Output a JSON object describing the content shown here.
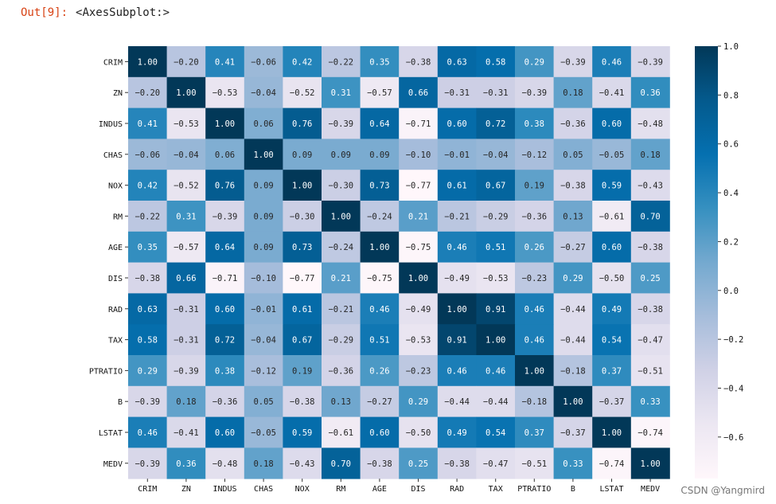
{
  "output": {
    "prompt": "Out[9]:",
    "text": "<AxesSubplot:>"
  },
  "watermark": "CSDN @Yangmird",
  "colors": {
    "prompt": "#d84315",
    "colormap": [
      "#fff7fb",
      "#ece7f2",
      "#d0d1e6",
      "#a6bddb",
      "#74a9cf",
      "#3690c0",
      "#0570b0",
      "#045a8d",
      "#023858"
    ]
  },
  "chart_data": {
    "type": "heatmap",
    "title": "",
    "xlabel": "",
    "ylabel": "",
    "labels": [
      "CRIM",
      "ZN",
      "INDUS",
      "CHAS",
      "NOX",
      "RM",
      "AGE",
      "DIS",
      "RAD",
      "TAX",
      "PTRATIO",
      "B",
      "LSTAT",
      "MEDV"
    ],
    "values": [
      [
        1.0,
        -0.2,
        0.41,
        -0.06,
        0.42,
        -0.22,
        0.35,
        -0.38,
        0.63,
        0.58,
        0.29,
        -0.39,
        0.46,
        -0.39
      ],
      [
        -0.2,
        1.0,
        -0.53,
        -0.04,
        -0.52,
        0.31,
        -0.57,
        0.66,
        -0.31,
        -0.31,
        -0.39,
        0.18,
        -0.41,
        0.36
      ],
      [
        0.41,
        -0.53,
        1.0,
        0.06,
        0.76,
        -0.39,
        0.64,
        -0.71,
        0.6,
        0.72,
        0.38,
        -0.36,
        0.6,
        -0.48
      ],
      [
        -0.06,
        -0.04,
        0.06,
        1.0,
        0.09,
        0.09,
        0.09,
        -0.1,
        -0.01,
        -0.04,
        -0.12,
        0.05,
        -0.05,
        0.18
      ],
      [
        0.42,
        -0.52,
        0.76,
        0.09,
        1.0,
        -0.3,
        0.73,
        -0.77,
        0.61,
        0.67,
        0.19,
        -0.38,
        0.59,
        -0.43
      ],
      [
        -0.22,
        0.31,
        -0.39,
        0.09,
        -0.3,
        1.0,
        -0.24,
        0.21,
        -0.21,
        -0.29,
        -0.36,
        0.13,
        -0.61,
        0.7
      ],
      [
        0.35,
        -0.57,
        0.64,
        0.09,
        0.73,
        -0.24,
        1.0,
        -0.75,
        0.46,
        0.51,
        0.26,
        -0.27,
        0.6,
        -0.38
      ],
      [
        -0.38,
        0.66,
        -0.71,
        -0.1,
        -0.77,
        0.21,
        -0.75,
        1.0,
        -0.49,
        -0.53,
        -0.23,
        0.29,
        -0.5,
        0.25
      ],
      [
        0.63,
        -0.31,
        0.6,
        -0.01,
        0.61,
        -0.21,
        0.46,
        -0.49,
        1.0,
        0.91,
        0.46,
        -0.44,
        0.49,
        -0.38
      ],
      [
        0.58,
        -0.31,
        0.72,
        -0.04,
        0.67,
        -0.29,
        0.51,
        -0.53,
        0.91,
        1.0,
        0.46,
        -0.44,
        0.54,
        -0.47
      ],
      [
        0.29,
        -0.39,
        0.38,
        -0.12,
        0.19,
        -0.36,
        0.26,
        -0.23,
        0.46,
        0.46,
        1.0,
        -0.18,
        0.37,
        -0.51
      ],
      [
        -0.39,
        0.18,
        -0.36,
        0.05,
        -0.38,
        0.13,
        -0.27,
        0.29,
        -0.44,
        -0.44,
        -0.18,
        1.0,
        -0.37,
        0.33
      ],
      [
        0.46,
        -0.41,
        0.6,
        -0.05,
        0.59,
        -0.61,
        0.6,
        -0.5,
        0.49,
        0.54,
        0.37,
        -0.37,
        1.0,
        -0.74
      ],
      [
        -0.39,
        0.36,
        -0.48,
        0.18,
        -0.43,
        0.7,
        -0.38,
        0.25,
        -0.38,
        -0.47,
        -0.51,
        0.33,
        -0.74,
        1.0
      ]
    ],
    "colorbar": {
      "min": -0.77,
      "max": 1.0,
      "ticks": [
        1.0,
        0.8,
        0.6,
        0.4,
        0.2,
        0.0,
        -0.2,
        -0.4,
        -0.6
      ]
    },
    "colormap": "PuBu"
  }
}
